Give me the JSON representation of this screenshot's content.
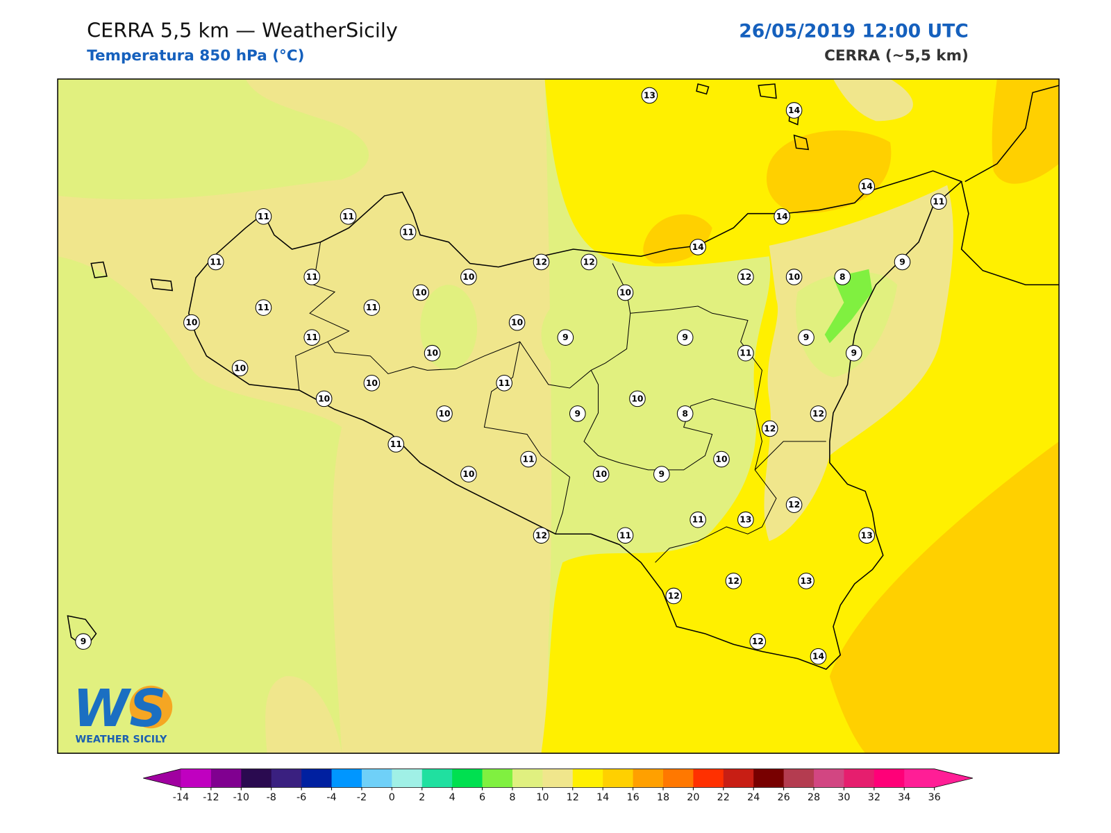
{
  "header": {
    "title": "CERRA 5,5 km — WeatherSicily",
    "subtitle": "Temperatura 850 hPa (°C)",
    "datetime": "26/05/2019 12:00 UTC",
    "model": "CERRA (~5,5 km)"
  },
  "stations": [
    13,
    14,
    14,
    11,
    14,
    14,
    11,
    11,
    11,
    11,
    12,
    12,
    11,
    10,
    10,
    10,
    12,
    10,
    8,
    9,
    11,
    11,
    10,
    10,
    9,
    9,
    9,
    11,
    10,
    11,
    9,
    10,
    10,
    11,
    10,
    10,
    10,
    9,
    8,
    12,
    12,
    11,
    11,
    10,
    10,
    10,
    9,
    12,
    11,
    13,
    12,
    11,
    13,
    12,
    12,
    13,
    12,
    14,
    9
  ],
  "colorbar": {
    "ticks": [
      -14,
      -12,
      -10,
      -8,
      -6,
      -4,
      -2,
      0,
      2,
      4,
      6,
      8,
      10,
      12,
      14,
      16,
      18,
      20,
      22,
      24,
      26,
      28,
      30,
      32,
      34,
      36
    ],
    "under_color": "#a000a0",
    "over_color": "#ff1e96",
    "colors": [
      "#c000c0",
      "#800090",
      "#2a0a50",
      "#3a2080",
      "#0020a0",
      "#0096ff",
      "#6fd0f8",
      "#a0f0e6",
      "#20e0a0",
      "#00e050",
      "#80f040",
      "#e0f080",
      "#f0e68c",
      "#fff000",
      "#ffd000",
      "#ffa000",
      "#ff7800",
      "#ff3000",
      "#c81e14",
      "#780000",
      "#b43c50",
      "#d24682",
      "#e61e6e",
      "#ff0078",
      "#ff1e96"
    ]
  },
  "logo": {
    "text": "WS",
    "caption": "WEATHER SICILY"
  }
}
